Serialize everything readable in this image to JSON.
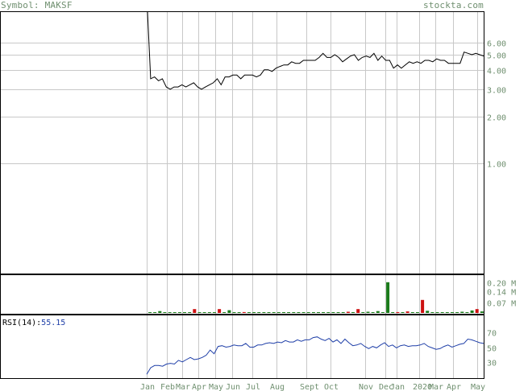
{
  "header": {
    "symbol_label": "Symbol: MAKSF",
    "site": "stockta.com"
  },
  "rsi": {
    "label": "RSI(14):",
    "value": "55.15"
  },
  "colors": {
    "price_line": "#000000",
    "rsi_line": "#1f3fa8",
    "vol_up": "#1a7a1a",
    "vol_down": "#cc1111",
    "grid": "#c8c8c8",
    "axis_text": "#6f8f6f"
  },
  "chart_data": [
    {
      "type": "line",
      "title": "",
      "scale": "log",
      "ylim": [
        0.2,
        6.5
      ],
      "yticks": [
        "6.00",
        "5.00",
        "4.00",
        "3.00",
        "2.00",
        "1.00"
      ],
      "x_labels": [
        "Jan",
        "Feb",
        "Mar",
        "Apr",
        "May",
        "Jun",
        "Jul",
        "Aug",
        "Sept",
        "Oct",
        "Nov",
        "Dec",
        "Jan",
        "2020",
        "Mar",
        "Apr",
        "May"
      ],
      "series": [
        {
          "values": [
            40,
            3.5,
            3.6,
            3.4,
            3.5,
            3.1,
            3.0,
            3.1,
            3.1,
            3.2,
            3.1,
            3.2,
            3.3,
            3.1,
            3.0,
            3.1,
            3.2,
            3.3,
            3.5,
            3.2,
            3.6,
            3.6,
            3.7,
            3.7,
            3.5,
            3.7,
            3.7,
            3.7,
            3.6,
            3.7,
            4.0,
            4.0,
            3.9,
            4.1,
            4.2,
            4.3,
            4.3,
            4.5,
            4.4,
            4.4,
            4.6,
            4.6,
            4.6,
            4.6,
            4.8,
            5.1,
            4.8,
            4.8,
            5.0,
            4.8,
            4.5,
            4.7,
            4.9,
            5.0,
            4.6,
            4.8,
            4.9,
            4.8,
            5.1,
            4.6,
            4.9,
            4.6,
            4.6,
            4.1,
            4.3,
            4.1,
            4.3,
            4.5,
            4.4,
            4.5,
            4.4,
            4.6,
            4.6,
            4.5,
            4.7,
            4.6,
            4.6,
            4.4,
            4.4,
            4.4,
            4.4,
            5.2,
            5.1,
            5.0,
            5.1,
            5.0,
            4.9
          ]
        }
      ]
    },
    {
      "type": "bar",
      "title": "",
      "ylabel": "M",
      "ylim": [
        0,
        0.22
      ],
      "yticks": [
        "0.20 M",
        "0.14 M",
        "0.07 M"
      ],
      "series": [
        {
          "name": "volume",
          "values": [
            0.0,
            0.0,
            0.012,
            0.0,
            0.002,
            0.003,
            0.0,
            0.0,
            0.0,
            0.025,
            0.0,
            0.0,
            0.0,
            0.0,
            0.025,
            0.0,
            0.018,
            0.0,
            0.0,
            0.006,
            0.0,
            0.0,
            0.002,
            0.0,
            0.0,
            0.0,
            0.0,
            0.0,
            0.0,
            0.0,
            0.0,
            0.0,
            0.0,
            0.0,
            0.0,
            0.0,
            0.0,
            0.0,
            0.0,
            0.0,
            0.008,
            0.0,
            0.025,
            0.0,
            0.008,
            0.0,
            0.012,
            0.0,
            0.2,
            0.004,
            0.006,
            0.0,
            0.01,
            0.0,
            0.0,
            0.085,
            0.014,
            0.0,
            0.0,
            0.0,
            0.0,
            0.0,
            0.0,
            0.008,
            0.0,
            0.016,
            0.025,
            0.01
          ]
        },
        {
          "name": "direction",
          "values": [
            "u",
            "u",
            "u",
            "u",
            "u",
            "u",
            "u",
            "u",
            "u",
            "d",
            "u",
            "u",
            "u",
            "u",
            "d",
            "u",
            "u",
            "u",
            "u",
            "d",
            "u",
            "u",
            "u",
            "u",
            "u",
            "u",
            "u",
            "u",
            "u",
            "u",
            "u",
            "u",
            "u",
            "u",
            "u",
            "u",
            "u",
            "u",
            "u",
            "u",
            "d",
            "u",
            "d",
            "u",
            "u",
            "u",
            "u",
            "u",
            "u",
            "u",
            "d",
            "u",
            "d",
            "u",
            "u",
            "d",
            "u",
            "u",
            "u",
            "u",
            "u",
            "u",
            "u",
            "u",
            "u",
            "u",
            "d",
            "u"
          ]
        }
      ]
    },
    {
      "type": "line",
      "title": "RSI(14)",
      "ylim": [
        10,
        90
      ],
      "yticks": [
        "70",
        "50",
        "30"
      ],
      "series": [
        {
          "name": "RSI(14)",
          "values": [
            13,
            22,
            25,
            25,
            24,
            27,
            28,
            27,
            32,
            30,
            33,
            36,
            33,
            34,
            36,
            39,
            46,
            41,
            51,
            52,
            50,
            51,
            53,
            52,
            52,
            55,
            50,
            50,
            53,
            53,
            55,
            56,
            55,
            57,
            56,
            59,
            57,
            57,
            60,
            58,
            60,
            60,
            63,
            64,
            61,
            59,
            62,
            57,
            60,
            55,
            61,
            56,
            52,
            53,
            55,
            51,
            48,
            51,
            49,
            53,
            56,
            51,
            53,
            49,
            52,
            53,
            51,
            52,
            52,
            53,
            55,
            51,
            49,
            47,
            48,
            51,
            53,
            50,
            52,
            54,
            55,
            61,
            60,
            58,
            56,
            55
          ]
        }
      ]
    }
  ]
}
